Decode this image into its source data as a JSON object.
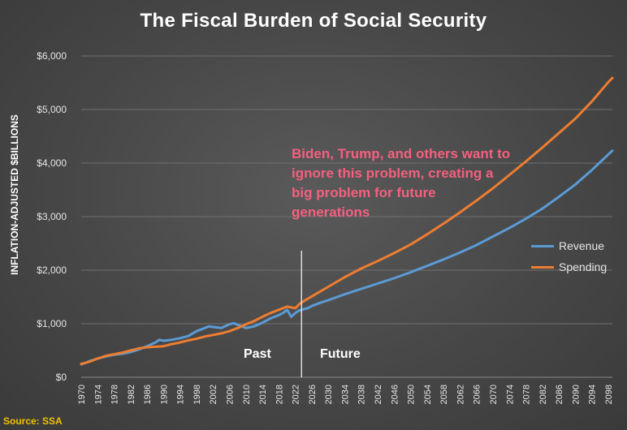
{
  "chart_data": {
    "type": "line",
    "title": "The Fiscal Burden of Social Security",
    "ylabel": "INFLATION-ADJUSTED $BILLIONS",
    "xlabel": "",
    "ylim": [
      0,
      6000
    ],
    "yticks": [
      "$0",
      "$1,000",
      "$2,000",
      "$3,000",
      "$4,000",
      "$5,000",
      "$6,000"
    ],
    "xlim": [
      1970,
      2099
    ],
    "xtick_labels": [
      "1970",
      "1974",
      "1978",
      "1982",
      "1986",
      "1990",
      "1994",
      "1998",
      "2002",
      "2006",
      "2010",
      "2014",
      "2018",
      "2022",
      "2026",
      "2030",
      "2034",
      "2038",
      "2042",
      "2046",
      "2050",
      "2054",
      "2058",
      "2062",
      "2066",
      "2070",
      "2074",
      "2078",
      "2082",
      "2086",
      "2090",
      "2094",
      "2098"
    ],
    "grid": "horizontal",
    "legend_position": "right",
    "divider_year": 2023.5,
    "annotation": "Biden, Trump, and others want to ignore this problem, creating a big problem for future generations",
    "region_labels": {
      "past": "Past",
      "future": "Future"
    },
    "source": "Source: SSA",
    "series": [
      {
        "name": "Revenue",
        "color": "#5b9bd5",
        "x": [
          1970,
          1972,
          1974,
          1976,
          1978,
          1980,
          1982,
          1984,
          1986,
          1988,
          1989,
          1990,
          1992,
          1994,
          1996,
          1998,
          2000,
          2001,
          2002,
          2004,
          2006,
          2007,
          2008,
          2009,
          2010,
          2012,
          2014,
          2016,
          2018,
          2019,
          2020,
          2021,
          2022,
          2023,
          2024,
          2025,
          2026,
          2028,
          2030,
          2034,
          2038,
          2042,
          2046,
          2050,
          2054,
          2058,
          2062,
          2066,
          2070,
          2074,
          2078,
          2082,
          2086,
          2090,
          2094,
          2098,
          2099
        ],
        "values": [
          240,
          300,
          350,
          390,
          420,
          440,
          470,
          520,
          580,
          650,
          700,
          680,
          700,
          730,
          770,
          860,
          920,
          950,
          940,
          920,
          990,
          1010,
          980,
          950,
          920,
          950,
          1020,
          1100,
          1160,
          1200,
          1260,
          1130,
          1200,
          1250,
          1270,
          1290,
          1330,
          1390,
          1440,
          1550,
          1650,
          1750,
          1850,
          1960,
          2080,
          2200,
          2330,
          2470,
          2630,
          2790,
          2960,
          3150,
          3370,
          3600,
          3870,
          4160,
          4230
        ]
      },
      {
        "name": "Spending",
        "color": "#ed7d31",
        "x": [
          1970,
          1972,
          1974,
          1976,
          1978,
          1980,
          1982,
          1984,
          1986,
          1988,
          1990,
          1992,
          1994,
          1996,
          1998,
          2000,
          2002,
          2004,
          2006,
          2008,
          2010,
          2012,
          2014,
          2016,
          2018,
          2020,
          2022,
          2023,
          2024,
          2026,
          2028,
          2030,
          2034,
          2038,
          2042,
          2046,
          2050,
          2054,
          2058,
          2062,
          2066,
          2070,
          2074,
          2078,
          2082,
          2086,
          2090,
          2094,
          2098,
          2099
        ],
        "values": [
          250,
          290,
          350,
          400,
          430,
          460,
          500,
          540,
          560,
          570,
          580,
          620,
          650,
          690,
          720,
          760,
          790,
          820,
          860,
          920,
          990,
          1050,
          1130,
          1200,
          1260,
          1320,
          1290,
          1370,
          1420,
          1510,
          1600,
          1690,
          1870,
          2030,
          2170,
          2320,
          2480,
          2670,
          2870,
          3080,
          3300,
          3530,
          3780,
          4030,
          4290,
          4560,
          4830,
          5150,
          5510,
          5590
        ]
      }
    ]
  }
}
